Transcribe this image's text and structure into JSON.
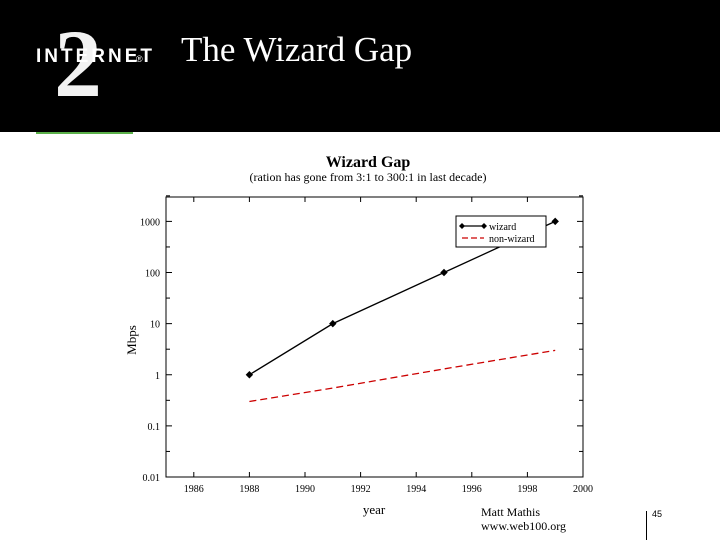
{
  "header": {
    "logo_text": "INTERNET",
    "logo_numeral": "2",
    "logo_mark": "®",
    "title": "The Wizard Gap",
    "background": "#000000",
    "accent": "#5bb04a"
  },
  "chart_data": {
    "type": "line",
    "title": "Wizard Gap",
    "subtitle": "(ration has gone from 3:1 to 300:1 in last decade)",
    "xlabel": "year",
    "ylabel": "Mbps",
    "xlim": [
      1985,
      2000
    ],
    "ylim": [
      0.01,
      3000
    ],
    "yscale": "log",
    "x_ticks": [
      1986,
      1988,
      1990,
      1992,
      1994,
      1996,
      1998,
      2000
    ],
    "y_ticks": [
      0.01,
      0.1,
      1,
      10,
      100,
      1000
    ],
    "y_tick_labels": [
      "0.01",
      "0.1",
      "1",
      "10",
      "100",
      "1000"
    ],
    "grid": false,
    "legend": "top-right",
    "series": [
      {
        "name": "wizard",
        "color": "#000000",
        "style": "solid",
        "marker": "diamond",
        "x": [
          1988,
          1991,
          1995,
          1999
        ],
        "y": [
          1,
          10,
          100,
          1000
        ]
      },
      {
        "name": "non-wizard",
        "color": "#cc0000",
        "style": "dashed",
        "marker": "none",
        "x": [
          1988,
          1991,
          1995,
          1999
        ],
        "y": [
          0.3,
          0.55,
          1.3,
          3
        ]
      }
    ]
  },
  "footer": {
    "author": "Matt Mathis",
    "url": "www.web100.org",
    "page_number": "45"
  }
}
